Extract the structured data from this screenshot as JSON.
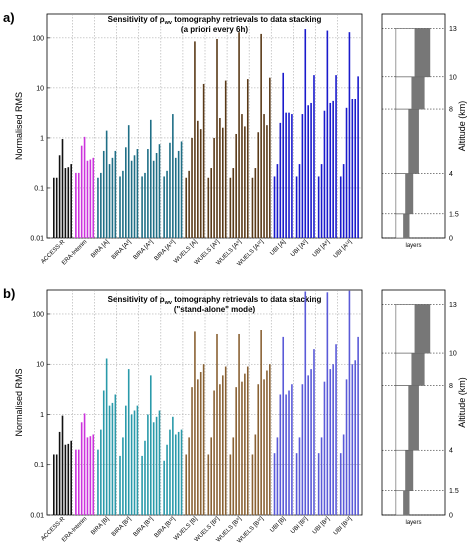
{
  "figure": {
    "y_axis_label": "Normalised RMS",
    "right_axis_label": "Altitude (km)",
    "right_x_label": "layers",
    "y_ticks": [
      "0.01",
      "0.1",
      "1",
      "10",
      "100"
    ],
    "altitude_ticks": [
      "0",
      "1.5",
      "4",
      "8",
      "10",
      "13"
    ]
  },
  "chart_data": [
    {
      "type": "bar",
      "panel_label": "a)",
      "title_line1": "Sensitivity of ρ",
      "title_sub": "wv",
      "title_line1_rest": " tomography retrievals to data stacking",
      "title_line2": "(a priori every 6h)",
      "ylabel": "Normalised RMS",
      "yscale": "log",
      "ylim": [
        0.01,
        300
      ],
      "grid": true,
      "categories": [
        "ACCESS-R",
        "ERA-Interim",
        "BIRA [A]",
        "BIRA [A²]",
        "BIRA [A⁶]",
        "BIRA [A¹²]",
        "WUELS [A]",
        "WUELS [A²]",
        "WUELS [A⁶]",
        "WUELS [A¹²]",
        "UBI [A]",
        "UBI [A²]",
        "UBI [A⁶]",
        "UBI [A¹²]"
      ],
      "colors": [
        "#111111",
        "#cc33dd",
        "#1f6f86",
        "#1f6f86",
        "#1f6f86",
        "#1f6f86",
        "#5a3a18",
        "#5a3a18",
        "#5a3a18",
        "#5a3a18",
        "#1a1acc",
        "#1a1acc",
        "#1a1acc",
        "#1a1acc"
      ],
      "groups": [
        [
          0.16,
          0.16,
          0.45,
          0.95,
          0.25,
          0.26,
          0.3
        ],
        [
          0.2,
          0.2,
          0.7,
          1.05,
          0.35,
          0.37,
          0.4
        ],
        [
          0.16,
          0.2,
          0.55,
          1.4,
          0.3,
          0.4,
          0.55
        ],
        [
          0.17,
          0.22,
          0.65,
          1.8,
          0.35,
          0.45,
          0.6
        ],
        [
          0.17,
          0.2,
          0.6,
          2.3,
          0.35,
          0.5,
          0.75
        ],
        [
          0.17,
          0.22,
          0.8,
          3.0,
          0.4,
          0.55,
          0.85
        ],
        [
          0.16,
          0.22,
          1.0,
          85,
          2.2,
          1.5,
          12
        ],
        [
          0.16,
          0.25,
          1.0,
          95,
          2.5,
          1.6,
          14
        ],
        [
          0.16,
          0.25,
          1.2,
          130,
          3.0,
          1.7,
          15
        ],
        [
          0.16,
          0.25,
          1.3,
          120,
          3.0,
          1.8,
          16
        ],
        [
          0.17,
          0.3,
          2.0,
          20,
          3.2,
          3.2,
          3.0
        ],
        [
          0.17,
          0.3,
          3.0,
          150,
          4.5,
          5.0,
          18
        ],
        [
          0.17,
          0.3,
          3.5,
          140,
          5.0,
          5.5,
          18
        ],
        [
          0.17,
          0.3,
          4.0,
          130,
          6.0,
          6.0,
          17
        ]
      ],
      "layers": [
        {
          "bottom": 0,
          "top": 1.5,
          "value": 0.35
        },
        {
          "bottom": 1.5,
          "top": 4,
          "value": 0.45
        },
        {
          "bottom": 4,
          "top": 8,
          "value": 0.6
        },
        {
          "bottom": 8,
          "top": 10,
          "value": 0.75
        },
        {
          "bottom": 10,
          "top": 13,
          "value": 0.9
        }
      ]
    },
    {
      "type": "bar",
      "panel_label": "b)",
      "title_line1": "Sensitivity of ρ",
      "title_sub": "wv",
      "title_line1_rest": " tomography retrievals to data stacking",
      "title_line2": "(\"stand-alone\" mode)",
      "ylabel": "Normalised RMS",
      "yscale": "log",
      "ylim": [
        0.01,
        300
      ],
      "grid": true,
      "categories": [
        "ACCESS-R",
        "ERA-Interim",
        "BIRA [B]",
        "BIRA [B²]",
        "BIRA [B⁶]",
        "BIRA [B¹²]",
        "WUELS [B]",
        "WUELS [B²]",
        "WUELS [B⁶]",
        "WUELS [B¹²]",
        "UBI [B]",
        "UBI [B²]",
        "UBI [B⁶]",
        "UBI [B¹²]"
      ],
      "colors": [
        "#111111",
        "#cc33dd",
        "#2a9aaa",
        "#2a9aaa",
        "#2a9aaa",
        "#2a9aaa",
        "#8a6234",
        "#8a6234",
        "#8a6234",
        "#8a6234",
        "#5a5ad8",
        "#5a5ad8",
        "#5a5ad8",
        "#5a5ad8"
      ],
      "groups": [
        [
          0.16,
          0.16,
          0.45,
          0.95,
          0.25,
          0.26,
          0.3
        ],
        [
          0.2,
          0.2,
          0.7,
          1.05,
          0.35,
          0.37,
          0.4
        ],
        [
          0.2,
          0.5,
          3.0,
          13,
          1.5,
          1.7,
          2.5
        ],
        [
          0.15,
          0.35,
          1.5,
          8.0,
          1.0,
          1.2,
          1.5
        ],
        [
          0.15,
          0.3,
          1.0,
          6.0,
          0.7,
          0.9,
          1.2
        ],
        [
          0.12,
          0.25,
          0.5,
          0.9,
          0.4,
          0.45,
          0.5
        ],
        [
          0.16,
          0.35,
          3.5,
          45,
          5.0,
          7.0,
          10
        ],
        [
          0.16,
          0.35,
          3.0,
          40,
          4.0,
          6.0,
          9.0
        ],
        [
          0.16,
          0.35,
          3.5,
          40,
          4.5,
          6.5,
          9.0
        ],
        [
          0.16,
          0.4,
          4.0,
          48,
          5.0,
          7.5,
          10
        ],
        [
          0.17,
          0.35,
          2.5,
          35,
          2.5,
          3.0,
          4.0
        ],
        [
          0.17,
          0.35,
          4.0,
          280,
          6.0,
          8.0,
          20
        ],
        [
          0.17,
          0.35,
          4.5,
          270,
          8.0,
          10,
          25
        ],
        [
          0.17,
          0.4,
          5.0,
          290,
          10,
          12,
          35
        ]
      ],
      "layers": [
        {
          "bottom": 0,
          "top": 1.5,
          "value": 0.35
        },
        {
          "bottom": 1.5,
          "top": 4,
          "value": 0.45
        },
        {
          "bottom": 4,
          "top": 8,
          "value": 0.6
        },
        {
          "bottom": 8,
          "top": 10,
          "value": 0.75
        },
        {
          "bottom": 10,
          "top": 13,
          "value": 0.9
        }
      ]
    }
  ]
}
